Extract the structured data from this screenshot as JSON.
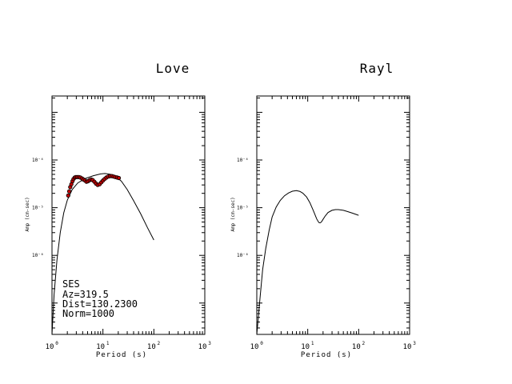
{
  "chart_data": [
    {
      "type": "line",
      "title": "Love",
      "xlabel": "Period (s)",
      "ylabel": "Amp (cm-sec)",
      "x_scale": "log",
      "y_scale": "log",
      "xlim": [
        1,
        1000
      ],
      "ylim": [
        2.2e-08,
        0.0022
      ],
      "x_ticks": [
        {
          "base": "10",
          "exp": "0"
        },
        {
          "base": "10",
          "exp": "1"
        },
        {
          "base": "10",
          "exp": "2"
        },
        {
          "base": "10",
          "exp": "3"
        }
      ],
      "y_ticks": [
        "10⁻⁴",
        "10⁻⁵",
        "10⁻⁶"
      ],
      "annotation": [
        "SES",
        "Az=319.5",
        "Dist=130.2300",
        "Norm=1000"
      ],
      "series": [
        {
          "kind": "line",
          "color": "#000000",
          "points": [
            [
              1.0,
              2.2e-08
            ],
            [
              1.1,
              1.5e-07
            ],
            [
              1.25,
              8e-07
            ],
            [
              1.45,
              3e-06
            ],
            [
              1.7,
              7.8e-06
            ],
            [
              2.0,
              1.45e-05
            ],
            [
              2.5,
              2.4e-05
            ],
            [
              3.2,
              3.3e-05
            ],
            [
              4.5,
              4.1e-05
            ],
            [
              6.5,
              4.7e-05
            ],
            [
              9.0,
              5.1e-05
            ],
            [
              11.0,
              5.2e-05
            ],
            [
              14.0,
              5e-05
            ],
            [
              18.0,
              4.5e-05
            ],
            [
              23.0,
              3.6e-05
            ],
            [
              30.0,
              2.4e-05
            ],
            [
              40.0,
              1.4e-05
            ],
            [
              55.0,
              7.5e-06
            ],
            [
              75.0,
              3.8e-06
            ],
            [
              100.0,
              2.1e-06
            ]
          ]
        },
        {
          "kind": "points",
          "color": "#c00000",
          "edge": "#000000",
          "points": [
            [
              2.08,
              1.8e-05
            ],
            [
              2.18,
              2.2e-05
            ],
            [
              2.28,
              2.7e-05
            ],
            [
              2.4,
              3.1e-05
            ],
            [
              2.52,
              3.6e-05
            ],
            [
              2.65,
              4e-05
            ],
            [
              2.8,
              4.3e-05
            ],
            [
              2.95,
              4.4e-05
            ],
            [
              3.15,
              4.4e-05
            ],
            [
              3.35,
              4.4e-05
            ],
            [
              3.6,
              4.3e-05
            ],
            [
              3.9,
              4.1e-05
            ],
            [
              4.15,
              3.9e-05
            ],
            [
              4.45,
              3.7e-05
            ],
            [
              4.75,
              3.5e-05
            ],
            [
              5.1,
              3.6e-05
            ],
            [
              5.5,
              3.8e-05
            ],
            [
              5.9,
              3.9e-05
            ],
            [
              6.3,
              3.8e-05
            ],
            [
              6.8,
              3.5e-05
            ],
            [
              7.3,
              3.2e-05
            ],
            [
              7.9,
              3e-05
            ],
            [
              8.6,
              3.1e-05
            ],
            [
              9.3,
              3.4e-05
            ],
            [
              10.0,
              3.7e-05
            ],
            [
              10.8,
              4e-05
            ],
            [
              11.7,
              4.3e-05
            ],
            [
              12.7,
              4.5e-05
            ],
            [
              13.8,
              4.6e-05
            ],
            [
              15.0,
              4.6e-05
            ],
            [
              16.2,
              4.5e-05
            ],
            [
              17.5,
              4.4e-05
            ],
            [
              19.0,
              4.3e-05
            ],
            [
              20.5,
              4.2e-05
            ]
          ]
        }
      ]
    },
    {
      "type": "line",
      "title": "Rayl",
      "xlabel": "Period (s)",
      "ylabel": "Amp (cm-sec)",
      "x_scale": "log",
      "y_scale": "log",
      "xlim": [
        1,
        1000
      ],
      "ylim": [
        2.2e-08,
        0.0022
      ],
      "x_ticks": [
        {
          "base": "10",
          "exp": "0"
        },
        {
          "base": "10",
          "exp": "1"
        },
        {
          "base": "10",
          "exp": "2"
        },
        {
          "base": "10",
          "exp": "3"
        }
      ],
      "y_ticks": [
        "10⁻⁴",
        "10⁻⁵",
        "10⁻⁶"
      ],
      "annotation": [],
      "series": [
        {
          "kind": "line",
          "color": "#000000",
          "points": [
            [
              1.0,
              2.2e-08
            ],
            [
              1.15,
              1.2e-07
            ],
            [
              1.3,
              5e-07
            ],
            [
              1.5,
              1.4e-06
            ],
            [
              1.75,
              3.4e-06
            ],
            [
              2.0,
              6.4e-06
            ],
            [
              2.4,
              1.03e-05
            ],
            [
              2.9,
              1.43e-05
            ],
            [
              3.5,
              1.78e-05
            ],
            [
              4.2,
              2.04e-05
            ],
            [
              5.0,
              2.22e-05
            ],
            [
              6.0,
              2.28e-05
            ],
            [
              7.0,
              2.2e-05
            ],
            [
              8.0,
              2.02e-05
            ],
            [
              9.5,
              1.68e-05
            ],
            [
              11.0,
              1.28e-05
            ],
            [
              13.0,
              8.5e-06
            ],
            [
              15.0,
              5.8e-06
            ],
            [
              16.5,
              4.9e-06
            ],
            [
              17.5,
              4.8e-06
            ],
            [
              18.5,
              5e-06
            ],
            [
              20.0,
              5.7e-06
            ],
            [
              22.0,
              6.7e-06
            ],
            [
              25.0,
              7.9e-06
            ],
            [
              30.0,
              8.8e-06
            ],
            [
              35.0,
              9.1e-06
            ],
            [
              40.0,
              9.1e-06
            ],
            [
              50.0,
              8.8e-06
            ],
            [
              60.0,
              8.3e-06
            ],
            [
              75.0,
              7.7e-06
            ],
            [
              90.0,
              7.2e-06
            ],
            [
              100.0,
              6.9e-06
            ]
          ]
        }
      ]
    }
  ]
}
